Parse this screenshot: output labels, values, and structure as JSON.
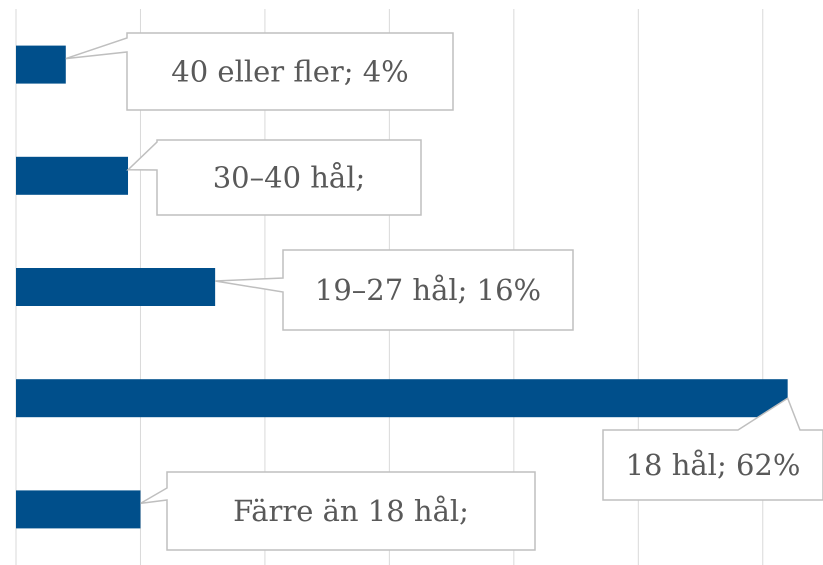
{
  "chart_data": {
    "type": "bar",
    "orientation": "horizontal",
    "categories": [
      "40 eller fler",
      "30–40 hål",
      "19–27 hål",
      "18 hål",
      "Färre än 18 hål"
    ],
    "values": [
      4,
      9,
      16,
      62,
      10
    ],
    "value_labels": [
      "40 eller fler; 4%",
      "30–40 hål;",
      "19–27 hål; 16%",
      "18 hål; 62%",
      "Färre än 18 hål;"
    ],
    "color": "#004f8b",
    "xlim": [
      0,
      65
    ],
    "xticks": [
      0,
      10,
      20,
      30,
      40,
      50,
      60
    ],
    "grid": true
  }
}
